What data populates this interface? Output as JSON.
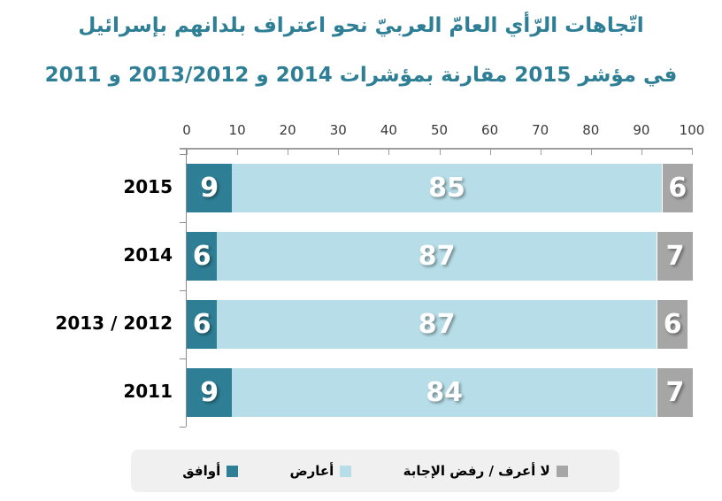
{
  "title": {
    "line1": "اتّجاهات الرّأي العامّ العربيّ نحو اعتراف بلدانهم بإسرائيل",
    "line2": "في مؤشر 2015 مقارنة بمؤشرات 2014 و 2013/2012 و 2011"
  },
  "chart_data": {
    "type": "bar",
    "orientation": "horizontal-stacked",
    "axis_position": "top",
    "grid": false,
    "xlim": [
      0,
      100
    ],
    "x_ticks": [
      0,
      10,
      20,
      30,
      40,
      50,
      60,
      70,
      80,
      90,
      100
    ],
    "categories": [
      "2015",
      "2014",
      "2013 / 2012",
      "2011"
    ],
    "series": [
      {
        "name": "أوافق",
        "color": "#2E7F96",
        "values": [
          9,
          6,
          6,
          9
        ]
      },
      {
        "name": "أعارض",
        "color": "#B7DEE8",
        "values": [
          85,
          87,
          87,
          84
        ]
      },
      {
        "name": "لا أعرف /  رفض الإجابة",
        "color": "#A6A6A6",
        "values": [
          6,
          7,
          6,
          7
        ]
      }
    ],
    "value_labels": "white-on-bar",
    "legend_position": "bottom"
  },
  "legend": {
    "items": [
      {
        "label": "أوافق",
        "color": "#2E7F96"
      },
      {
        "label": "أعارض",
        "color": "#B7DEE8"
      },
      {
        "label": "لا أعرف /  رفض الإجابة",
        "color": "#A6A6A6"
      }
    ]
  },
  "colors": {
    "title": "#2E7F96",
    "axis": "#9d9d9d",
    "category_text": "#000000",
    "bar_value_text": "#ffffff",
    "legend_background": "#f0f0f0"
  }
}
